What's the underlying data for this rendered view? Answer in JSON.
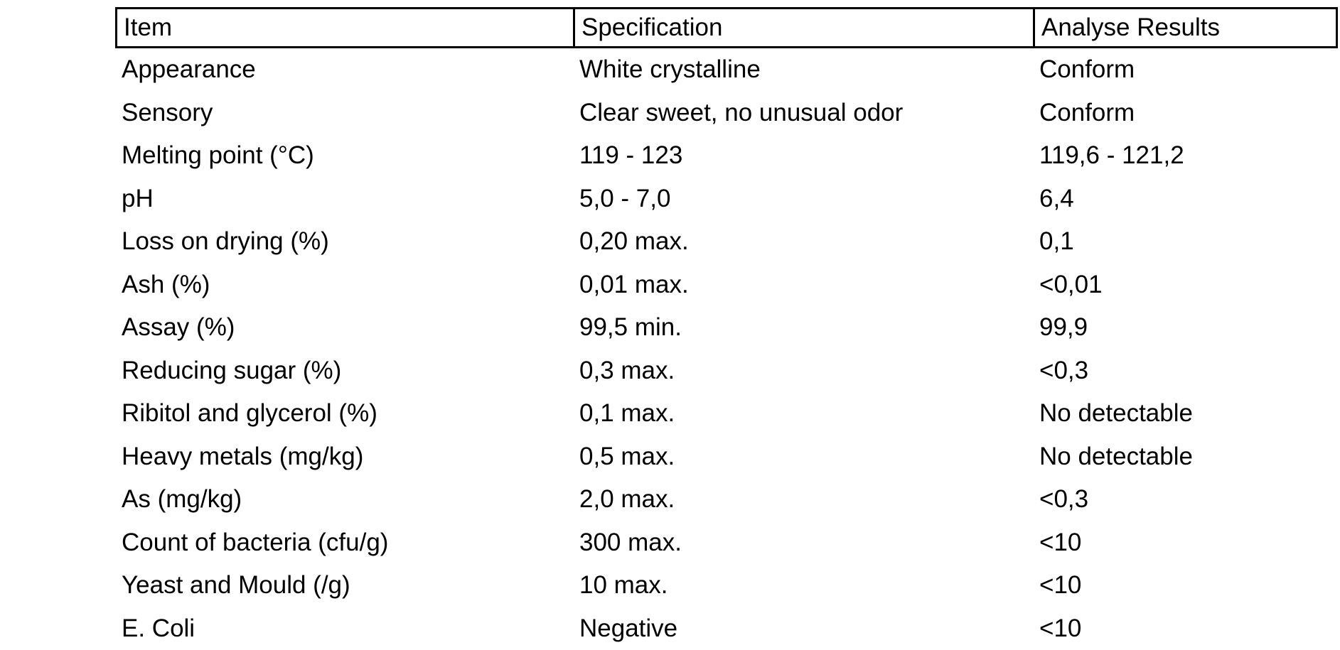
{
  "table": {
    "header": [
      "Item",
      "Specification",
      "Analyse Results"
    ],
    "rows": [
      [
        "Appearance",
        "White crystalline",
        "Conform"
      ],
      [
        "Sensory",
        "Clear sweet, no unusual odor",
        "Conform"
      ],
      [
        "Melting point (°C)",
        "119 - 123",
        "119,6 - 121,2"
      ],
      [
        "pH",
        "5,0 - 7,0",
        "6,4"
      ],
      [
        "Loss on drying (%)",
        "0,20 max.",
        "0,1"
      ],
      [
        "Ash (%)",
        "0,01 max.",
        "<0,01"
      ],
      [
        "Assay (%)",
        "99,5 min.",
        "99,9"
      ],
      [
        "Reducing sugar (%)",
        "0,3 max.",
        "<0,3"
      ],
      [
        "Ribitol and glycerol (%)",
        "0,1 max.",
        "No detectable"
      ],
      [
        "Heavy metals (mg/kg)",
        "0,5 max.",
        "No detectable"
      ],
      [
        "As (mg/kg)",
        "2,0 max.",
        "<0,3"
      ],
      [
        "Count of bacteria (cfu/g)",
        "300 max.",
        "<10"
      ],
      [
        "Yeast and Mould (/g)",
        "10 max.",
        "<10"
      ],
      [
        "E. Coli",
        "Negative",
        "<10"
      ]
    ]
  }
}
